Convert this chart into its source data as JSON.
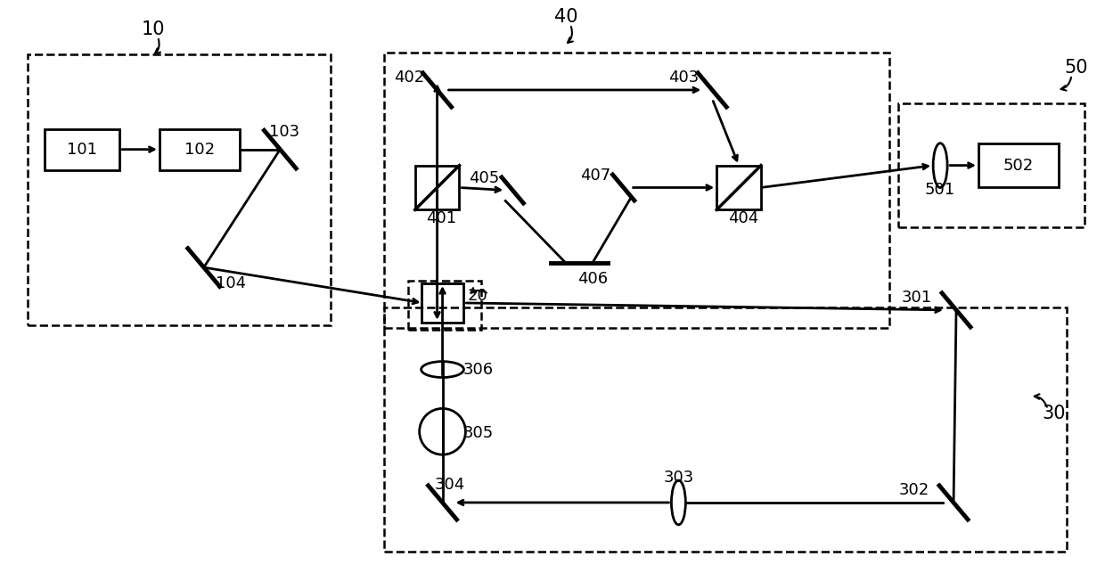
{
  "bg_color": "#ffffff",
  "line_color": "#000000",
  "lw": 2.0,
  "dashed_lw": 1.8,
  "mirror_lw": 3.5,
  "fig_w": 12.4,
  "fig_h": 6.43,
  "dpi": 100
}
